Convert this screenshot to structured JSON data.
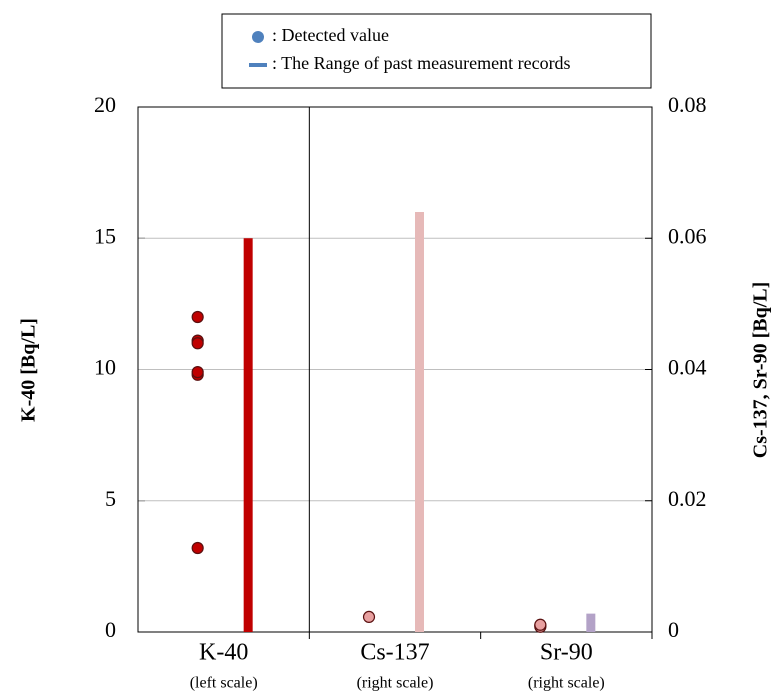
{
  "chart_data": {
    "type": "range-strip",
    "ylabel": "K-40 [Bq/L]",
    "y2label": "Cs-137, Sr-90 [Bq/L]",
    "ylim": [
      0,
      20
    ],
    "yticks": [
      0,
      5,
      10,
      15,
      20
    ],
    "y2lim": [
      0,
      0.08
    ],
    "y2ticks": [
      0,
      0.02,
      0.04,
      0.06,
      0.08
    ],
    "grid": true,
    "legend": [
      {
        "label": ": Detected value",
        "marker": "dot"
      },
      {
        "label": ": The Range of past measurement records",
        "marker": "line"
      }
    ],
    "legend_color": "#4f81bd",
    "groups": [
      {
        "name": "K-40",
        "note": "(left scale)",
        "axis": "y",
        "point_color": "#c00000",
        "range_color": "#c00000",
        "detected": [
          12.0,
          11.1,
          11.0,
          9.8,
          9.9,
          3.2
        ],
        "range": [
          0,
          15
        ]
      },
      {
        "name": "Cs-137",
        "note": "(right scale)",
        "axis": "y2",
        "point_color": "#e8a0a0",
        "range_color": "#e6b9b8",
        "detected": [
          0.0023
        ],
        "range": [
          0,
          0.064
        ]
      },
      {
        "name": "Sr-90",
        "note": "(right scale)",
        "axis": "y2",
        "point_color": "#e8a0a0",
        "range_color": "#b3a2c7",
        "detected": [
          0.001,
          0.0008,
          0.0011
        ],
        "range": [
          0,
          0.0028
        ]
      }
    ]
  }
}
